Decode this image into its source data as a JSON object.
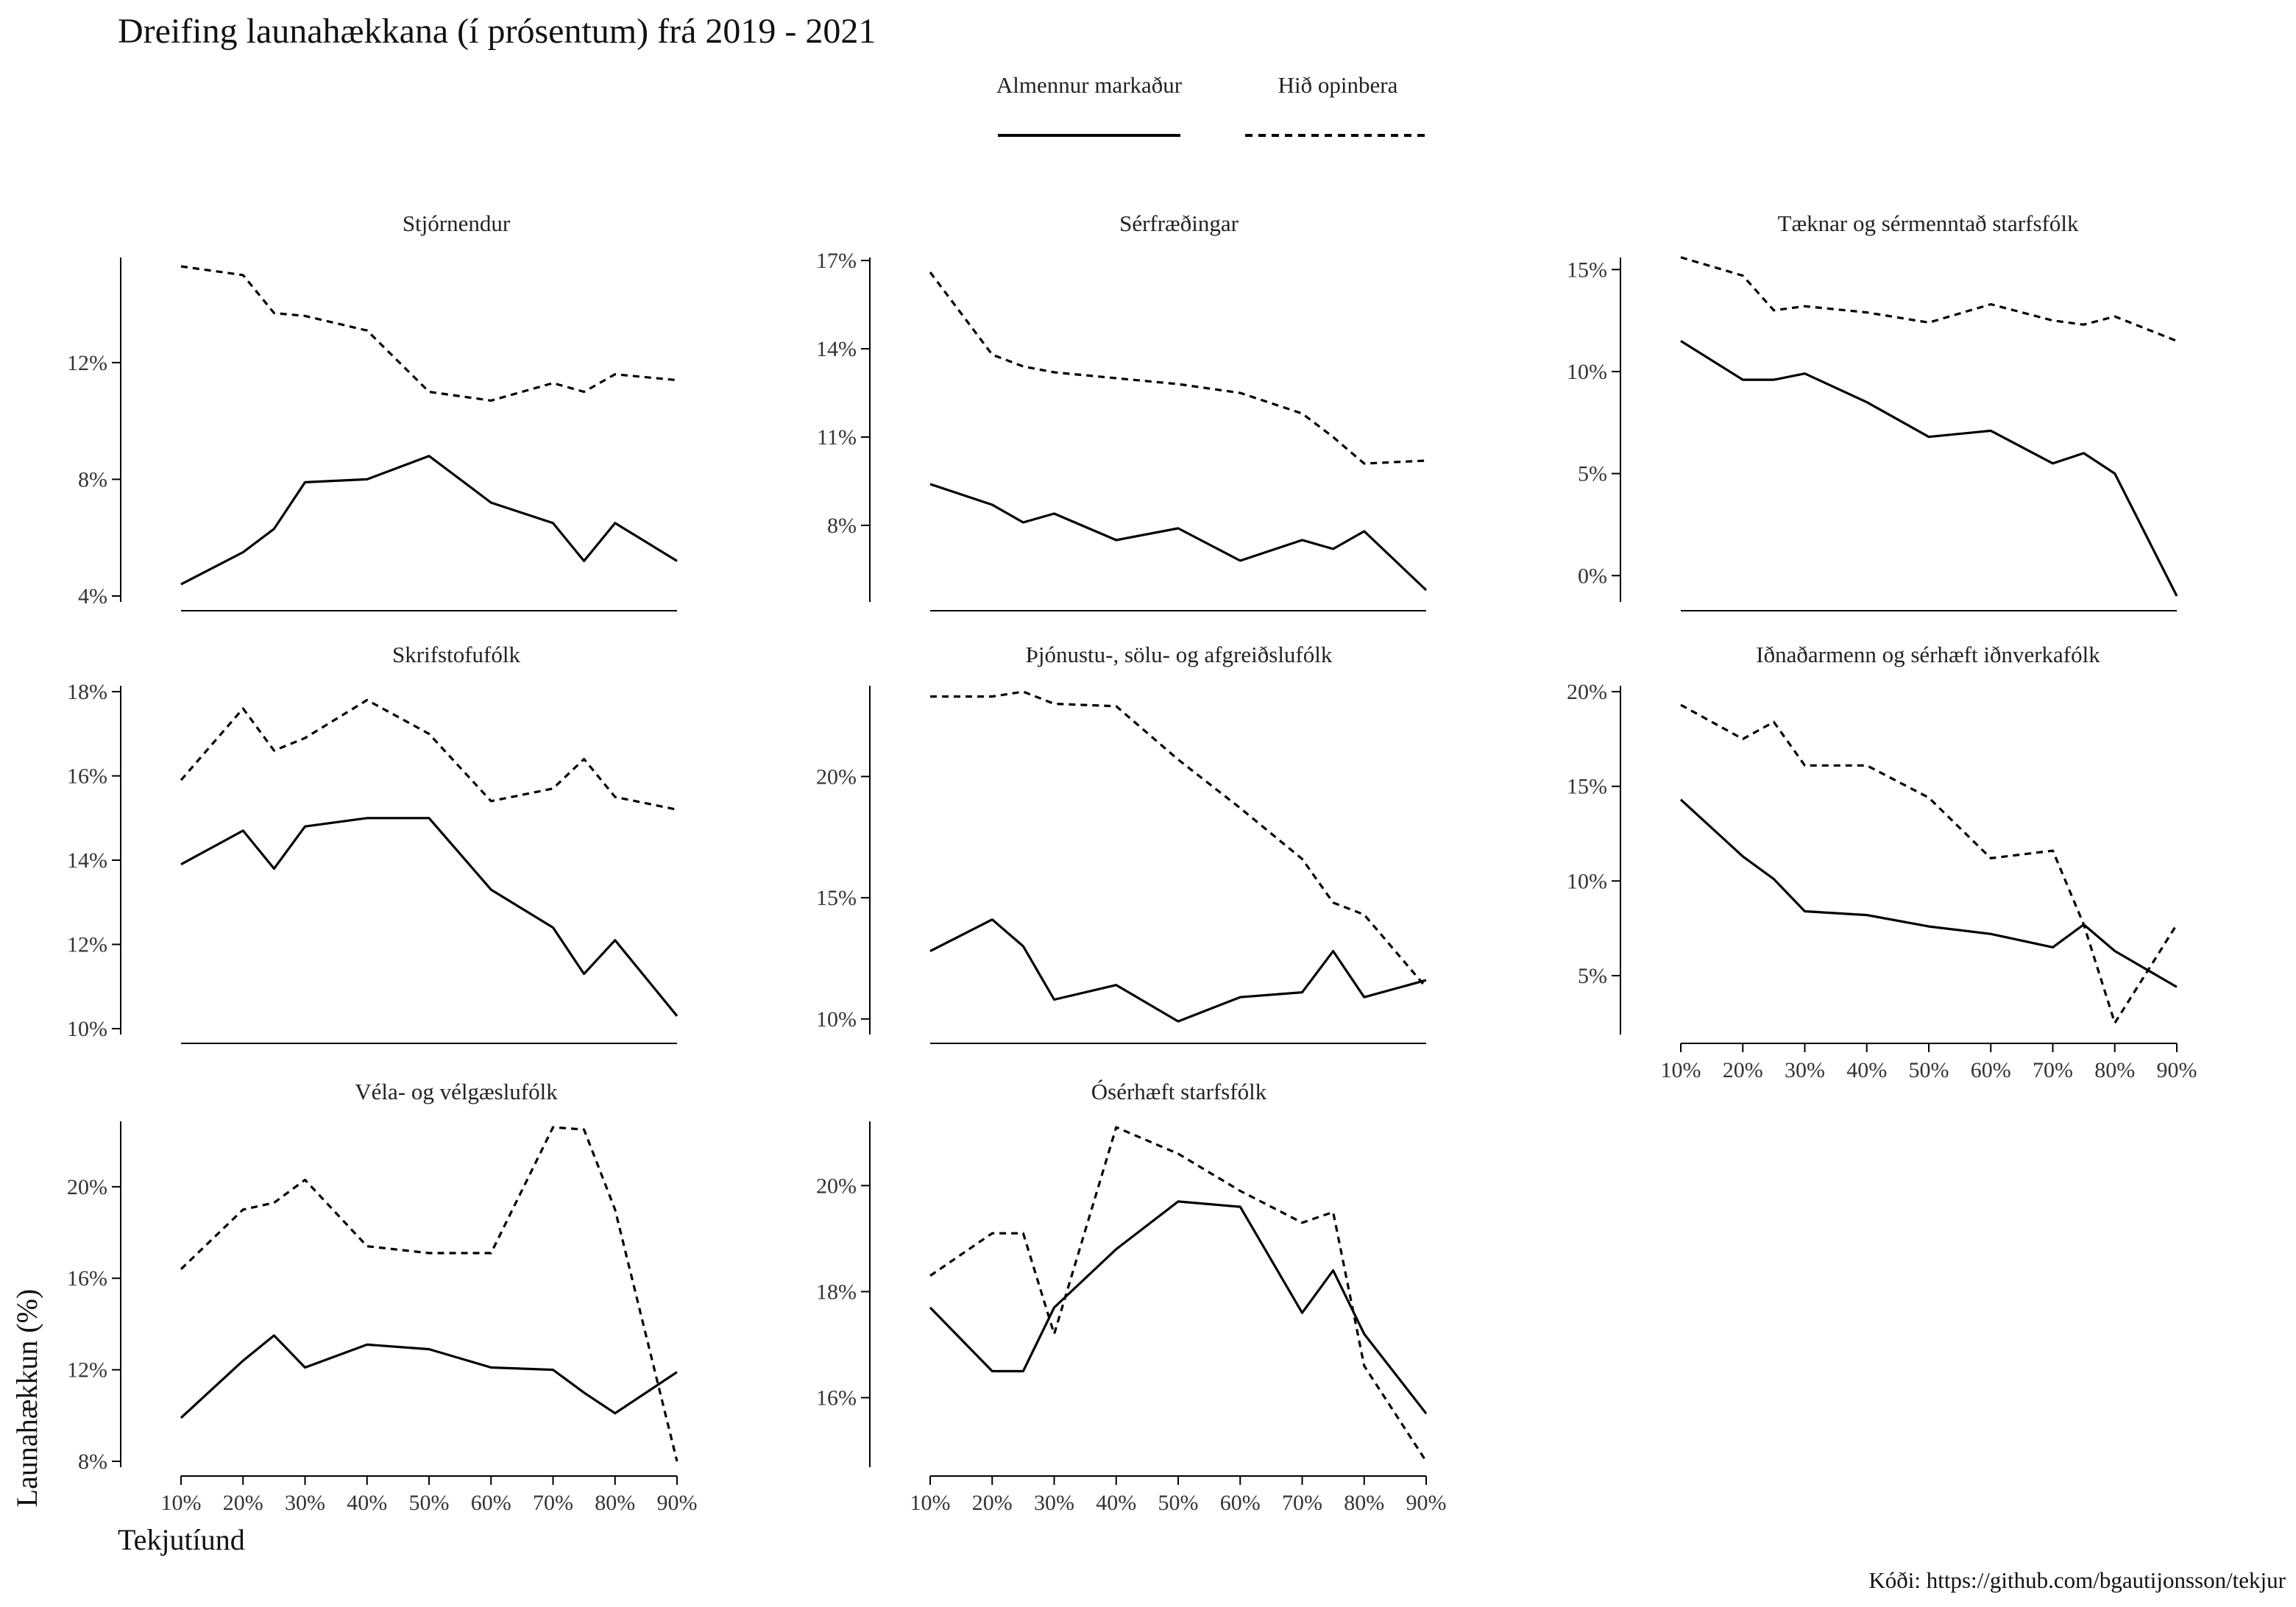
{
  "chart_data": {
    "type": "line",
    "title": "Dreifing launahækkana (í prósentum) frá 2019 - 2021",
    "xlabel": "Tekjutíund",
    "ylabel": "Launahækkun (%)",
    "caption": "Kóði: https://github.com/bgautijonsson/tekjur",
    "legend_position": "top-center",
    "grid": false,
    "series_names": [
      "Almennur markaður",
      "Hið opinbera"
    ],
    "series_styles": [
      "solid",
      "dashed"
    ],
    "x": [
      10,
      20,
      25,
      30,
      40,
      50,
      60,
      70,
      75,
      80,
      90
    ],
    "x_tick_values": [
      10,
      20,
      30,
      40,
      50,
      60,
      70,
      80,
      90
    ],
    "x_tick_labels": [
      "10%",
      "20%",
      "30%",
      "40%",
      "50%",
      "60%",
      "70%",
      "80%",
      "90%"
    ],
    "panels": [
      {
        "name": "Stjórnendur",
        "ylim": [
          4.0,
          15.4
        ],
        "y_ticks": [
          4,
          8,
          12
        ],
        "y_tick_labels": [
          "4%",
          "8%",
          "12%"
        ],
        "series": [
          {
            "name": "Almennur markaður",
            "values": [
              4.4,
              5.5,
              6.3,
              7.9,
              8.0,
              8.8,
              7.2,
              6.5,
              5.2,
              6.5,
              5.2
            ]
          },
          {
            "name": "Hið opinbera",
            "values": [
              15.3,
              15.0,
              13.7,
              13.6,
              13.1,
              11.0,
              10.7,
              11.3,
              11.0,
              11.6,
              11.4
            ]
          }
        ]
      },
      {
        "name": "Sérfræðingar",
        "ylim": [
          5.6,
          16.9
        ],
        "y_ticks": [
          8,
          11,
          14,
          17
        ],
        "y_tick_labels": [
          "8%",
          "11%",
          "14%",
          "17%"
        ],
        "series": [
          {
            "name": "Almennur markaður",
            "values": [
              9.4,
              8.7,
              8.1,
              8.4,
              7.5,
              7.9,
              6.8,
              7.5,
              7.2,
              7.8,
              5.8
            ]
          },
          {
            "name": "Hið opinbera",
            "values": [
              16.6,
              13.8,
              13.4,
              13.2,
              13.0,
              12.8,
              12.5,
              11.8,
              11.0,
              10.1,
              10.2
            ]
          }
        ]
      },
      {
        "name": "Tæknar og sérmenntað starfsfólk",
        "ylim": [
          -1.0,
          15.3
        ],
        "y_ticks": [
          0,
          5,
          10,
          15
        ],
        "y_tick_labels": [
          "0%",
          "5%",
          "10%",
          "15%"
        ],
        "series": [
          {
            "name": "Almennur markaður",
            "values": [
              11.5,
              9.6,
              9.6,
              9.9,
              8.5,
              6.8,
              7.1,
              5.5,
              6.0,
              5.0,
              -1.0
            ]
          },
          {
            "name": "Hið opinbera",
            "values": [
              15.6,
              14.7,
              13.0,
              13.2,
              12.9,
              12.4,
              13.3,
              12.5,
              12.3,
              12.7,
              11.5
            ]
          }
        ]
      },
      {
        "name": "Skrifstofufólk",
        "ylim": [
          10.0,
          18.0
        ],
        "y_ticks": [
          10,
          12,
          14,
          16,
          18
        ],
        "y_tick_labels": [
          "10%",
          "12%",
          "14%",
          "16%",
          "18%"
        ],
        "series": [
          {
            "name": "Almennur markaður",
            "values": [
              13.9,
              14.7,
              13.8,
              14.8,
              15.0,
              15.0,
              13.3,
              12.4,
              11.3,
              12.1,
              10.3
            ]
          },
          {
            "name": "Hið opinbera",
            "values": [
              15.9,
              17.6,
              16.6,
              16.9,
              17.8,
              17.0,
              15.4,
              15.7,
              16.4,
              15.5,
              15.2
            ]
          }
        ]
      },
      {
        "name": "Þjónustu-, sölu- og afgreiðslufólk",
        "ylim": [
          9.6,
          23.5
        ],
        "y_ticks": [
          10,
          15,
          20
        ],
        "y_tick_labels": [
          "10%",
          "15%",
          "20%"
        ],
        "series": [
          {
            "name": "Almennur markaður",
            "values": [
              12.8,
              14.1,
              13.0,
              10.8,
              11.4,
              9.9,
              10.9,
              11.1,
              12.8,
              10.9,
              11.6
            ]
          },
          {
            "name": "Hið opinbera",
            "values": [
              23.3,
              23.3,
              23.5,
              23.0,
              22.9,
              20.7,
              18.7,
              16.6,
              14.8,
              14.3,
              11.3
            ]
          }
        ]
      },
      {
        "name": "Iðnaðarmenn og sérhæft iðnverkafólk",
        "ylim": [
          2.2,
          20.0
        ],
        "y_ticks": [
          5,
          10,
          15,
          20
        ],
        "y_tick_labels": [
          "5%",
          "10%",
          "15%",
          "20%"
        ],
        "series": [
          {
            "name": "Almennur markaður",
            "values": [
              14.3,
              11.3,
              10.1,
              8.4,
              8.2,
              7.6,
              7.2,
              6.5,
              7.7,
              6.3,
              4.4
            ]
          },
          {
            "name": "Hið opinbera",
            "values": [
              19.3,
              17.5,
              18.4,
              16.1,
              16.1,
              14.4,
              11.2,
              11.6,
              7.7,
              2.5,
              7.7
            ]
          }
        ]
      },
      {
        "name": "Véla- og vélgæslufólk",
        "ylim": [
          8.0,
          22.6
        ],
        "y_ticks": [
          8,
          12,
          16,
          20
        ],
        "y_tick_labels": [
          "8%",
          "12%",
          "16%",
          "20%"
        ],
        "series": [
          {
            "name": "Almennur markaður",
            "values": [
              9.9,
              12.4,
              13.5,
              12.1,
              13.1,
              12.9,
              12.1,
              12.0,
              11.0,
              10.1,
              11.9
            ]
          },
          {
            "name": "Hið opinbera",
            "values": [
              16.4,
              19.0,
              19.3,
              20.3,
              17.4,
              17.1,
              17.1,
              22.6,
              22.5,
              19.0,
              8.0
            ]
          }
        ]
      },
      {
        "name": "Ósérhæft starfsfólk",
        "ylim": [
          14.8,
          21.1
        ],
        "y_ticks": [
          16,
          18,
          20
        ],
        "y_tick_labels": [
          "16%",
          "18%",
          "20%"
        ],
        "series": [
          {
            "name": "Almennur markaður",
            "values": [
              17.7,
              16.5,
              16.5,
              17.7,
              18.8,
              19.7,
              19.6,
              17.6,
              18.4,
              17.2,
              15.7
            ]
          },
          {
            "name": "Hið opinbera",
            "values": [
              18.3,
              19.1,
              19.1,
              17.2,
              21.1,
              20.6,
              19.9,
              19.3,
              19.5,
              16.6,
              14.8
            ]
          }
        ]
      }
    ]
  }
}
